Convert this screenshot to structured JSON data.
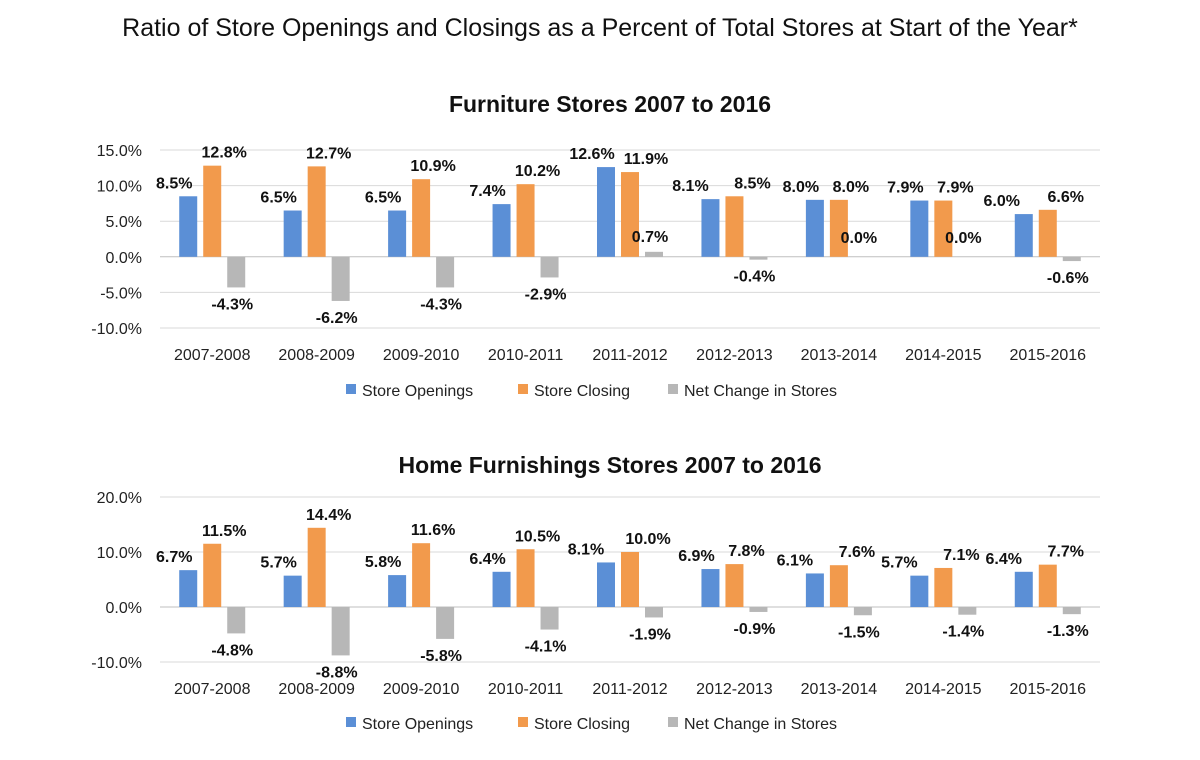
{
  "page": {
    "title": "Ratio of Store Openings and Closings as a Percent of Total Stores at Start of the Year*"
  },
  "colors": {
    "openings": "#5b8fd6",
    "closing": "#f29a4c",
    "net": "#b7b7b7",
    "grid": "#d9d9d9",
    "axis": "#bfbfbf"
  },
  "chart_data": [
    {
      "type": "bar",
      "title": "Furniture Stores 2007 to 2016",
      "categories": [
        "2007-2008",
        "2008-2009",
        "2009-2010",
        "2010-2011",
        "2011-2012",
        "2012-2013",
        "2013-2014",
        "2014-2015",
        "2015-2016"
      ],
      "ylim": [
        -10,
        15
      ],
      "yticks": [
        15,
        10,
        5,
        0,
        -5,
        -10
      ],
      "ytick_labels": [
        "15.0%",
        "10.0%",
        "5.0%",
        "0.0%",
        "-5.0%",
        "-10.0%"
      ],
      "grid": true,
      "legend_position": "bottom",
      "series": [
        {
          "name": "Store Openings",
          "values": [
            8.5,
            6.5,
            6.5,
            7.4,
            12.6,
            8.1,
            8.0,
            7.9,
            6.0
          ],
          "labels": [
            "8.5%",
            "6.5%",
            "6.5%",
            "7.4%",
            "12.6%",
            "8.1%",
            "8.0%",
            "7.9%",
            "6.0%"
          ]
        },
        {
          "name": "Store Closing",
          "values": [
            12.8,
            12.7,
            10.9,
            10.2,
            11.9,
            8.5,
            8.0,
            7.9,
            6.6
          ],
          "labels": [
            "12.8%",
            "12.7%",
            "10.9%",
            "10.2%",
            "11.9%",
            "8.5%",
            "8.0%",
            "7.9%",
            "6.6%"
          ]
        },
        {
          "name": "Net Change in Stores",
          "values": [
            -4.3,
            -6.2,
            -4.3,
            -2.9,
            0.7,
            -0.4,
            0.0,
            0.0,
            -0.6
          ],
          "labels": [
            "-4.3%",
            "-6.2%",
            "-4.3%",
            "-2.9%",
            "0.7%",
            "-0.4%",
            "0.0%",
            "0.0%",
            "-0.6%"
          ]
        }
      ]
    },
    {
      "type": "bar",
      "title": "Home Furnishings Stores 2007 to 2016",
      "categories": [
        "2007-2008",
        "2008-2009",
        "2009-2010",
        "2010-2011",
        "2011-2012",
        "2012-2013",
        "2013-2014",
        "2014-2015",
        "2015-2016"
      ],
      "ylim": [
        -10,
        20
      ],
      "yticks": [
        20,
        10,
        0,
        -10
      ],
      "ytick_labels": [
        "20.0%",
        "10.0%",
        "0.0%",
        "-10.0%"
      ],
      "grid": true,
      "legend_position": "bottom",
      "series": [
        {
          "name": "Store Openings",
          "values": [
            6.7,
            5.7,
            5.8,
            6.4,
            8.1,
            6.9,
            6.1,
            5.7,
            6.4
          ],
          "labels": [
            "6.7%",
            "5.7%",
            "5.8%",
            "6.4%",
            "8.1%",
            "6.9%",
            "6.1%",
            "5.7%",
            "6.4%"
          ]
        },
        {
          "name": "Store Closing",
          "values": [
            11.5,
            14.4,
            11.6,
            10.5,
            10.0,
            7.8,
            7.6,
            7.1,
            7.7
          ],
          "labels": [
            "11.5%",
            "14.4%",
            "11.6%",
            "10.5%",
            "10.0%",
            "7.8%",
            "7.6%",
            "7.1%",
            "7.7%"
          ]
        },
        {
          "name": "Net Change in Stores",
          "values": [
            -4.8,
            -8.8,
            -5.8,
            -4.1,
            -1.9,
            -0.9,
            -1.5,
            -1.4,
            -1.3
          ],
          "labels": [
            "-4.8%",
            "-8.8%",
            "-5.8%",
            "-4.1%",
            "-1.9%",
            "-0.9%",
            "-1.5%",
            "-1.4%",
            "-1.3%"
          ]
        }
      ]
    }
  ]
}
